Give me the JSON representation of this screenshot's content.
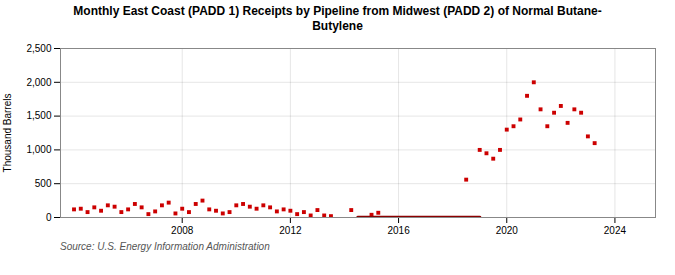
{
  "chart_data": {
    "type": "scatter",
    "title": "Monthly East Coast (PADD 1) Receipts by Pipeline from Midwest (PADD 2) of Normal Butane-\nButylene",
    "ylabel": "Thousand Barrels",
    "source": "Source: U.S. Energy Information Administration",
    "xlim": [
      2003.5,
      2025.5
    ],
    "xticks": [
      2008,
      2012,
      2016,
      2020,
      2024
    ],
    "ylim": [
      0,
      2500
    ],
    "yticks": [
      0,
      500,
      {
        "value": 1000,
        "label": "1,000"
      },
      {
        "value": 1500,
        "label": "1,500"
      },
      {
        "value": 2000,
        "label": "2,000"
      },
      {
        "value": 2500,
        "label": "2,500"
      }
    ],
    "grid": true,
    "series": [
      {
        "type": "scatter",
        "color": "#cc0000",
        "marker": "square",
        "x": [
          2004.0,
          2004.25,
          2004.5,
          2004.75,
          2005.0,
          2005.25,
          2005.5,
          2005.75,
          2006.0,
          2006.25,
          2006.5,
          2006.75,
          2007.0,
          2007.25,
          2007.5,
          2007.75,
          2008.0,
          2008.25,
          2008.5,
          2008.75,
          2009.0,
          2009.25,
          2009.5,
          2009.75,
          2010.0,
          2010.25,
          2010.5,
          2010.75,
          2011.0,
          2011.25,
          2011.5,
          2011.75,
          2012.0,
          2012.25,
          2012.5,
          2012.75,
          2013.0,
          2013.25,
          2013.5,
          2014.25,
          2015.0,
          2015.25,
          2018.5,
          2019.0,
          2019.25,
          2019.5,
          2019.75,
          2020.0,
          2020.25,
          2020.5,
          2020.75,
          2021.0,
          2021.25,
          2021.5,
          2021.75,
          2022.0,
          2022.25,
          2022.5,
          2022.75,
          2023.0,
          2023.25
        ],
        "values": [
          120,
          130,
          80,
          150,
          100,
          180,
          160,
          80,
          120,
          200,
          150,
          50,
          90,
          180,
          220,
          60,
          130,
          80,
          200,
          250,
          120,
          100,
          60,
          80,
          180,
          200,
          160,
          130,
          180,
          150,
          90,
          120,
          100,
          50,
          80,
          30,
          110,
          30,
          20,
          110,
          40,
          70,
          560,
          1000,
          950,
          870,
          1000,
          1300,
          1350,
          1450,
          1800,
          2000,
          1600,
          1350,
          1550,
          1650,
          1400,
          1600,
          1550,
          1200,
          1100
        ]
      },
      {
        "type": "line",
        "color": "#8b0000",
        "x": [
          2014.5,
          2019.0
        ],
        "values": [
          0,
          0
        ]
      }
    ]
  }
}
